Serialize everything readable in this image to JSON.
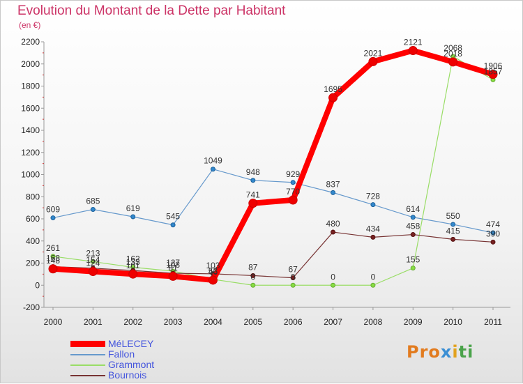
{
  "title": "Evolution du Montant de la Dette par Habitant",
  "subtitle": "(en €)",
  "logo": "Proxiti",
  "chart_data": {
    "type": "line",
    "x": [
      "2000",
      "2001",
      "2002",
      "2003",
      "2004",
      "2005",
      "2006",
      "2007",
      "2008",
      "2009",
      "2010",
      "2011"
    ],
    "yticks": [
      "-200",
      "0",
      "200",
      "400",
      "600",
      "800",
      "1000",
      "1200",
      "1400",
      "1600",
      "1800",
      "2000",
      "2200"
    ],
    "ylim": [
      -200,
      2200
    ],
    "grid": false,
    "legend_position": "bottom-left",
    "series": [
      {
        "name": "MéLECEY",
        "color": "#ff0000",
        "values": [
          148,
          124,
          101,
          81,
          46,
          741,
          770,
          1695,
          2021,
          2121,
          2018,
          1906
        ]
      },
      {
        "name": "Fallon",
        "color": "#6699cc",
        "values": [
          609,
          685,
          619,
          545,
          1049,
          948,
          929,
          837,
          728,
          614,
          550,
          474
        ]
      },
      {
        "name": "Grammont",
        "color": "#99dd66",
        "values": [
          261,
          213,
          162,
          127,
          53,
          0,
          0,
          0,
          0,
          155,
          2068,
          1857
        ]
      },
      {
        "name": "Bournois",
        "color": "#773333",
        "values": [
          168,
          154,
          133,
          108,
          103,
          87,
          67,
          480,
          434,
          458,
          415,
          390
        ]
      }
    ]
  }
}
